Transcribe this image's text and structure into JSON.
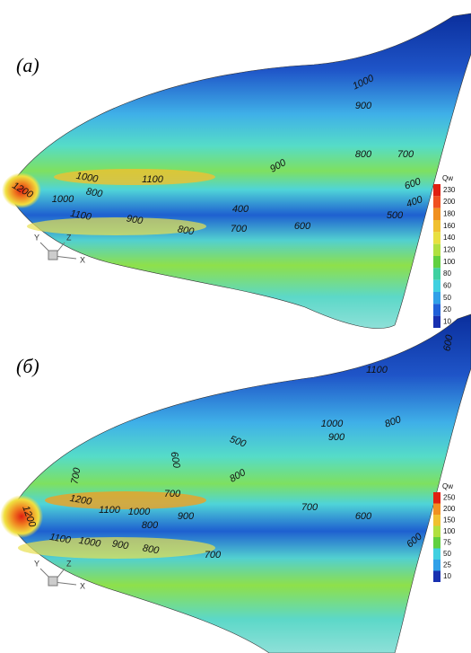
{
  "panels": [
    {
      "label": "(а)",
      "contour_labels": [
        "1000",
        "900",
        "800",
        "700",
        "900",
        "600",
        "1000",
        "1100",
        "800",
        "1200",
        "1000",
        "1100",
        "900",
        "800",
        "400",
        "700",
        "600",
        "500",
        "400"
      ],
      "legend": {
        "title": "Qw",
        "ticks": [
          "230",
          "200",
          "180",
          "160",
          "140",
          "120",
          "100",
          "80",
          "60",
          "50",
          "20",
          "10"
        ]
      },
      "axes": {
        "y": "Y",
        "z": "Z",
        "x": "X"
      }
    },
    {
      "label": "(б)",
      "contour_labels": [
        "600",
        "1100",
        "1000",
        "900",
        "800",
        "500",
        "600",
        "700",
        "700",
        "800",
        "700",
        "600",
        "600",
        "1200",
        "1100",
        "1000",
        "900",
        "800",
        "1200",
        "1100",
        "1000",
        "900",
        "800",
        "700"
      ],
      "legend": {
        "title": "Qw",
        "ticks": [
          "250",
          "200",
          "150",
          "100",
          "75",
          "50",
          "25",
          "10"
        ]
      },
      "axes": {
        "y": "Y",
        "z": "Z",
        "x": "X"
      }
    }
  ]
}
